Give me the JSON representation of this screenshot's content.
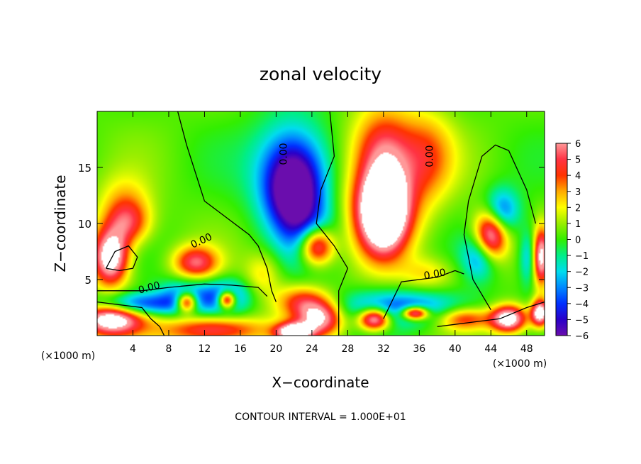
{
  "chart_data": {
    "type": "heatmap",
    "title": "zonal velocity",
    "xlabel": "X−coordinate",
    "ylabel": "Z−coordinate",
    "x_unit_left": "(×1000 m)",
    "x_unit_right": "(×1000 m)",
    "xlim": [
      0,
      50
    ],
    "ylim": [
      0,
      20
    ],
    "x_ticks": [
      4,
      8,
      12,
      16,
      20,
      24,
      28,
      32,
      36,
      40,
      44,
      48
    ],
    "y_ticks": [
      5,
      10,
      15
    ],
    "footer": "CONTOUR INTERVAL = 1.000E+01",
    "contour_label": "0.00",
    "colorbar": {
      "ticks": [
        "6",
        "5",
        "4",
        "3",
        "2",
        "1",
        "0",
        "−1",
        "−2",
        "−3",
        "−4",
        "−5",
        "−6"
      ],
      "range": [
        -6,
        6
      ],
      "saturation_color": "#ffffff"
    },
    "features": [
      {
        "x": 22,
        "z": 12.5,
        "value": -6,
        "rx": 3.0,
        "rz": 3.5
      },
      {
        "x": 21.5,
        "z": 14.5,
        "value": -3,
        "rx": 4.5,
        "rz": 4.5
      },
      {
        "x": 22,
        "z": 16,
        "value": -1.5,
        "rx": 3.5,
        "rz": 3.5
      },
      {
        "x": 24.5,
        "z": 8,
        "value": 8,
        "rx": 2.0,
        "rz": 1.8
      },
      {
        "x": 24,
        "z": 8.5,
        "value": -3,
        "rx": 3.0,
        "rz": 2.8
      },
      {
        "x": 32,
        "z": 11,
        "value": 8,
        "rx": 2.5,
        "rz": 3.5
      },
      {
        "x": 32,
        "z": 12,
        "value": 5,
        "rx": 4.0,
        "rz": 4.5
      },
      {
        "x": 32,
        "z": 17,
        "value": 4,
        "rx": 3.5,
        "rz": 3.5
      },
      {
        "x": 37,
        "z": 16,
        "value": 3,
        "rx": 3.0,
        "rz": 4.0
      },
      {
        "x": 44,
        "z": 9,
        "value": 8,
        "rx": 1.8,
        "rz": 2.5
      },
      {
        "x": 45,
        "z": 11,
        "value": -5,
        "rx": 2.0,
        "rz": 2.0
      },
      {
        "x": 43,
        "z": 7,
        "value": -4,
        "rx": 2.0,
        "rz": 2.0
      },
      {
        "x": 1.5,
        "z": 7,
        "value": 8,
        "rx": 2.0,
        "rz": 2.5
      },
      {
        "x": 3.5,
        "z": 10,
        "value": 4,
        "rx": 2.5,
        "rz": 2.0
      },
      {
        "x": 3.0,
        "z": 12,
        "value": 2,
        "rx": 3.0,
        "rz": 2.5
      },
      {
        "x": 1.5,
        "z": 1.5,
        "value": 8,
        "rx": 3.5,
        "rz": 1.5
      },
      {
        "x": 4,
        "z": 2.8,
        "value": -5,
        "rx": 5.0,
        "rz": 1.0
      },
      {
        "x": 10,
        "z": 3.0,
        "value": 8,
        "rx": 1.2,
        "rz": 0.9
      },
      {
        "x": 10,
        "z": 3.5,
        "value": -4,
        "rx": 3.0,
        "rz": 1.5
      },
      {
        "x": 14.5,
        "z": 3.2,
        "value": 8,
        "rx": 1.0,
        "rz": 0.8
      },
      {
        "x": 14.5,
        "z": 3.5,
        "value": -4,
        "rx": 2.5,
        "rz": 1.5
      },
      {
        "x": 11,
        "z": 6.5,
        "value": 5,
        "rx": 2.5,
        "rz": 1.5
      },
      {
        "x": 13,
        "z": 0.5,
        "value": 5,
        "rx": 6.0,
        "rz": 1.2
      },
      {
        "x": 22,
        "z": 0.3,
        "value": 8,
        "rx": 2.0,
        "rz": 0.8
      },
      {
        "x": 23,
        "z": 3.0,
        "value": 4,
        "rx": 3.0,
        "rz": 1.5
      },
      {
        "x": 25,
        "z": 1.5,
        "value": 6,
        "rx": 2.5,
        "rz": 1.5
      },
      {
        "x": 31,
        "z": 1.5,
        "value": 8,
        "rx": 1.8,
        "rz": 1.0
      },
      {
        "x": 35.5,
        "z": 2.0,
        "value": 8,
        "rx": 1.5,
        "rz": 0.6
      },
      {
        "x": 34,
        "z": 2.5,
        "value": -4,
        "rx": 7.0,
        "rz": 1.5
      },
      {
        "x": 46,
        "z": 1.5,
        "value": 8,
        "rx": 2.0,
        "rz": 1.2
      },
      {
        "x": 49.5,
        "z": 2.0,
        "value": 8,
        "rx": 1.0,
        "rz": 1.2
      },
      {
        "x": 49.5,
        "z": 7,
        "value": 8,
        "rx": 1.0,
        "rz": 2.5
      },
      {
        "x": 48.5,
        "z": 7,
        "value": -4,
        "rx": 1.2,
        "rz": 2.5
      },
      {
        "x": 41,
        "z": 1.5,
        "value": 4,
        "rx": 3.0,
        "rz": 1.0
      },
      {
        "x": 37,
        "z": 5.5,
        "value": 2,
        "rx": 3.0,
        "rz": 1.5
      },
      {
        "x": 18.5,
        "z": 5.5,
        "value": 2,
        "rx": 2.0,
        "rz": 2.0
      }
    ],
    "contours": [
      [
        [
          9,
          20
        ],
        [
          10,
          17
        ],
        [
          12,
          12
        ],
        [
          17,
          9
        ],
        [
          18,
          8
        ],
        [
          19,
          6
        ],
        [
          19.5,
          4
        ],
        [
          20,
          3
        ]
      ],
      [
        [
          26,
          20
        ],
        [
          26.5,
          16
        ],
        [
          25,
          13
        ],
        [
          24.5,
          10
        ],
        [
          26.5,
          8
        ],
        [
          28,
          6
        ],
        [
          27,
          4
        ],
        [
          27,
          0
        ]
      ],
      [
        [
          0,
          4
        ],
        [
          5,
          4
        ],
        [
          8,
          4.3
        ],
        [
          12,
          4.6
        ],
        [
          15,
          4.5
        ],
        [
          18,
          4.3
        ],
        [
          19,
          3.5
        ]
      ],
      [
        [
          0,
          3
        ],
        [
          5,
          2.5
        ],
        [
          6,
          1.5
        ],
        [
          7,
          0.8
        ],
        [
          7.5,
          0
        ]
      ],
      [
        [
          38,
          0.8
        ],
        [
          42,
          1.2
        ],
        [
          45,
          1.5
        ],
        [
          48,
          2.5
        ],
        [
          50,
          3
        ]
      ],
      [
        [
          44,
          2.3
        ],
        [
          42,
          5
        ],
        [
          41,
          9
        ],
        [
          41.5,
          12
        ],
        [
          43,
          16
        ],
        [
          44.5,
          17
        ],
        [
          46,
          16.5
        ],
        [
          48,
          13
        ],
        [
          49,
          10
        ]
      ],
      [
        [
          32,
          1.5
        ],
        [
          34,
          4.8
        ],
        [
          38,
          5.2
        ],
        [
          40,
          5.8
        ],
        [
          41,
          5.5
        ]
      ],
      [
        [
          1,
          6
        ],
        [
          2,
          7.5
        ],
        [
          3.5,
          8
        ],
        [
          4.5,
          7
        ],
        [
          4,
          6
        ],
        [
          2.5,
          5.8
        ],
        [
          1,
          6
        ]
      ]
    ]
  }
}
